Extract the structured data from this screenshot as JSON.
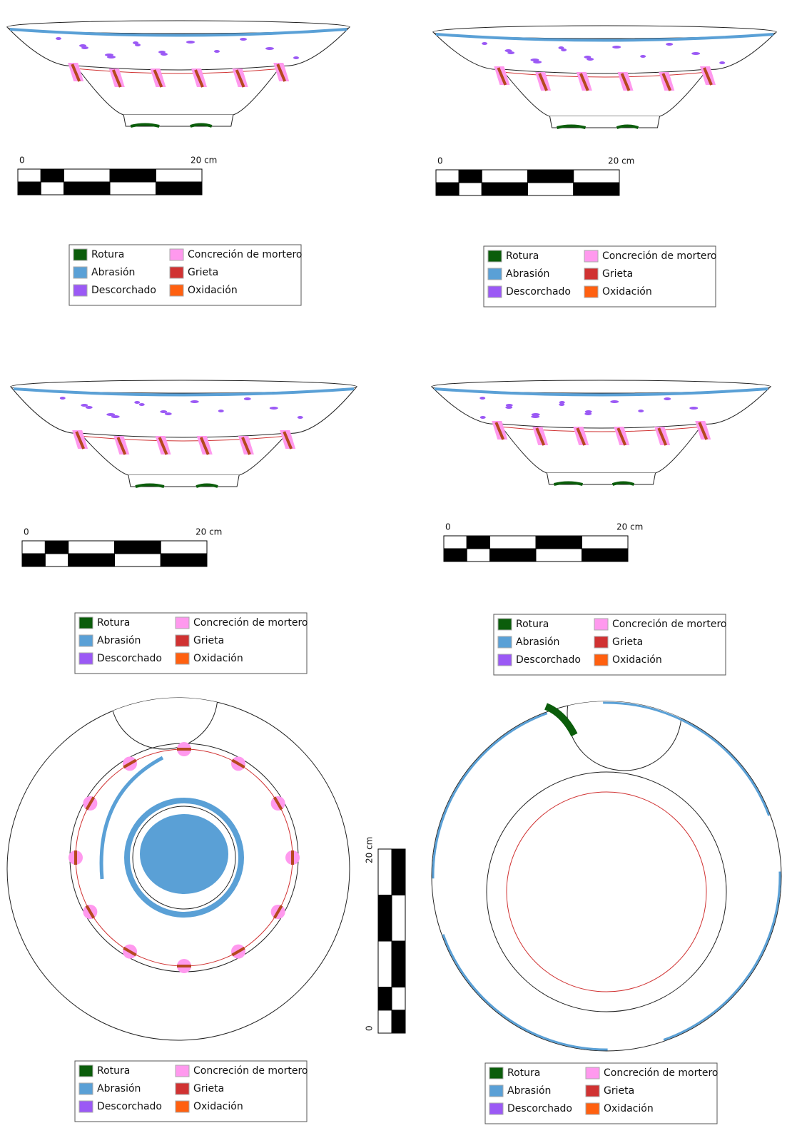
{
  "panels": [
    {
      "scale": {
        "start": "0",
        "end": "20 cm"
      },
      "legend": [
        {
          "label": "Rotura",
          "color": "#0b5d0b"
        },
        {
          "label": "Abrasión",
          "color": "#5aa0d6"
        },
        {
          "label": "Descorchado",
          "color": "#9b59f5"
        },
        {
          "label": "Concreción de mortero",
          "color": "#ff99ee"
        },
        {
          "label": "Grieta",
          "color": "#d03232"
        },
        {
          "label": "Oxidación",
          "color": "#ff6010"
        }
      ]
    },
    {
      "scale": {
        "start": "0",
        "end": "20 cm"
      },
      "legend": [
        {
          "label": "Rotura",
          "color": "#0b5d0b"
        },
        {
          "label": "Abrasión",
          "color": "#5aa0d6"
        },
        {
          "label": "Descorchado",
          "color": "#9b59f5"
        },
        {
          "label": "Concreción de mortero",
          "color": "#ff99ee"
        },
        {
          "label": "Grieta",
          "color": "#d03232"
        },
        {
          "label": "Oxidación",
          "color": "#ff6010"
        }
      ]
    },
    {
      "scale": {
        "start": "0",
        "end": "20 cm"
      },
      "legend": [
        {
          "label": "Rotura",
          "color": "#0b5d0b"
        },
        {
          "label": "Abrasión",
          "color": "#5aa0d6"
        },
        {
          "label": "Descorchado",
          "color": "#9b59f5"
        },
        {
          "label": "Concreción de mortero",
          "color": "#ff99ee"
        },
        {
          "label": "Grieta",
          "color": "#d03232"
        },
        {
          "label": "Oxidación",
          "color": "#ff6010"
        }
      ]
    },
    {
      "scale": {
        "start": "0",
        "end": "20 cm"
      },
      "legend": [
        {
          "label": "Rotura",
          "color": "#0b5d0b"
        },
        {
          "label": "Abrasión",
          "color": "#5aa0d6"
        },
        {
          "label": "Descorchado",
          "color": "#9b59f5"
        },
        {
          "label": "Concreción de mortero",
          "color": "#ff99ee"
        },
        {
          "label": "Grieta",
          "color": "#d03232"
        },
        {
          "label": "Oxidación",
          "color": "#ff6010"
        }
      ]
    },
    {
      "legend": [
        {
          "label": "Rotura",
          "color": "#0b5d0b"
        },
        {
          "label": "Abrasión",
          "color": "#5aa0d6"
        },
        {
          "label": "Descorchado",
          "color": "#9b59f5"
        },
        {
          "label": "Concreción de mortero",
          "color": "#ff99ee"
        },
        {
          "label": "Grieta",
          "color": "#d03232"
        },
        {
          "label": "Oxidación",
          "color": "#ff6010"
        }
      ]
    },
    {
      "legend": [
        {
          "label": "Rotura",
          "color": "#0b5d0b"
        },
        {
          "label": "Abrasión",
          "color": "#5aa0d6"
        },
        {
          "label": "Descorchado",
          "color": "#9b59f5"
        },
        {
          "label": "Concreción de mortero",
          "color": "#ff99ee"
        },
        {
          "label": "Grieta",
          "color": "#d03232"
        },
        {
          "label": "Oxidación",
          "color": "#ff6010"
        }
      ]
    }
  ],
  "vertical_scale": {
    "start": "0",
    "end": "20 cm"
  }
}
